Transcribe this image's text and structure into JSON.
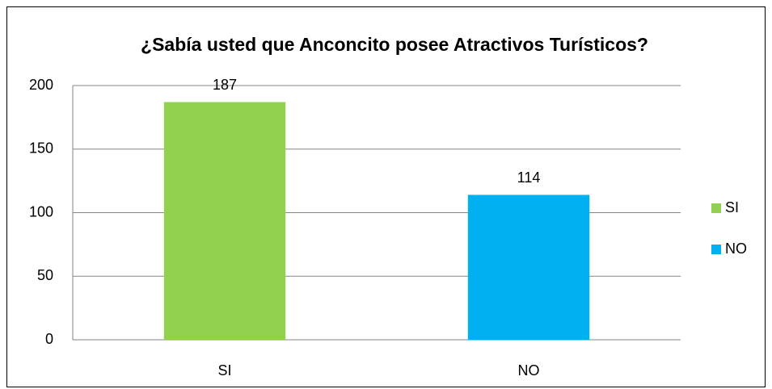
{
  "chart_data": {
    "type": "bar",
    "title": "¿Sabía usted que Anconcito posee Atractivos Turísticos?",
    "categories": [
      "SI",
      "NO"
    ],
    "values": [
      187,
      114
    ],
    "colors": [
      "#92d050",
      "#00b0f0"
    ],
    "ylim": [
      0,
      200
    ],
    "yticks": [
      0,
      50,
      100,
      150,
      200
    ],
    "grid": true,
    "legend": "right"
  }
}
